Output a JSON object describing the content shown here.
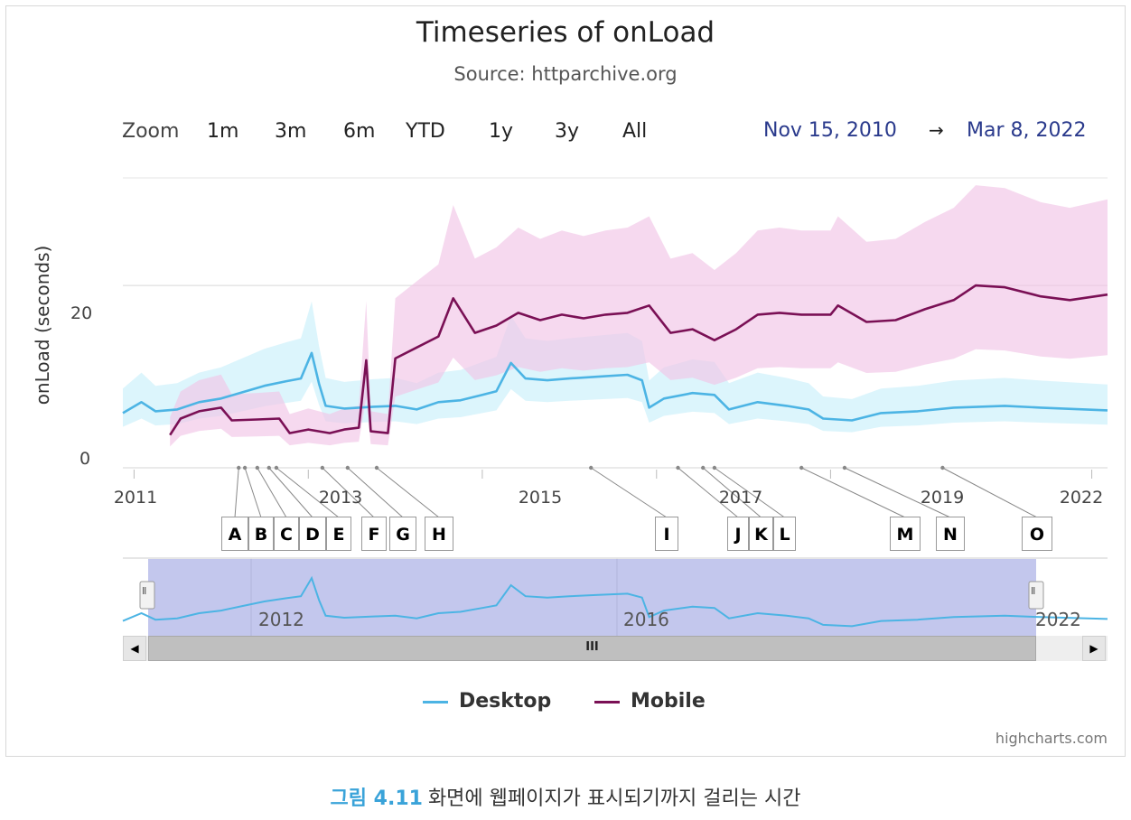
{
  "chart_data": {
    "type": "line",
    "title": "Timeseries of onLoad",
    "subtitle": "Source: httparchive.org",
    "ylabel": "onLoad (seconds)",
    "ylim": [
      0,
      32
    ],
    "y_ticks": [
      "0",
      "20"
    ],
    "x_ticks": [
      "2011",
      "2013",
      "2015",
      "2017",
      "2019",
      "2022"
    ],
    "x_range": [
      "2010-11-15",
      "2022-03-08"
    ],
    "grid": true,
    "legend_position": "bottom",
    "series": [
      {
        "name": "Desktop",
        "color": "#4cb4e4",
        "band_color": "#c9f0fb",
        "points": [
          [
            "2010-11-15",
            6.0
          ],
          [
            "2011-02-01",
            7.2
          ],
          [
            "2011-04-01",
            6.2
          ],
          [
            "2011-07-01",
            6.4
          ],
          [
            "2011-10-01",
            7.2
          ],
          [
            "2012-01-01",
            7.6
          ],
          [
            "2012-04-01",
            8.3
          ],
          [
            "2012-07-01",
            9.0
          ],
          [
            "2012-10-01",
            9.5
          ],
          [
            "2012-12-01",
            9.8
          ],
          [
            "2013-01-15",
            12.6
          ],
          [
            "2013-02-15",
            9.2
          ],
          [
            "2013-03-15",
            6.8
          ],
          [
            "2013-06-01",
            6.5
          ],
          [
            "2013-10-01",
            6.7
          ],
          [
            "2014-01-01",
            6.8
          ],
          [
            "2014-04-01",
            6.4
          ],
          [
            "2014-07-01",
            7.2
          ],
          [
            "2014-10-01",
            7.4
          ],
          [
            "2015-01-01",
            8.0
          ],
          [
            "2015-03-01",
            8.4
          ],
          [
            "2015-05-01",
            11.5
          ],
          [
            "2015-07-01",
            9.8
          ],
          [
            "2015-10-01",
            9.6
          ],
          [
            "2016-01-01",
            9.8
          ],
          [
            "2016-05-01",
            10.0
          ],
          [
            "2016-09-01",
            10.2
          ],
          [
            "2016-11-01",
            9.6
          ],
          [
            "2016-12-01",
            6.6
          ],
          [
            "2017-02-01",
            7.6
          ],
          [
            "2017-06-01",
            8.2
          ],
          [
            "2017-09-01",
            8.0
          ],
          [
            "2017-11-01",
            6.4
          ],
          [
            "2018-03-01",
            7.2
          ],
          [
            "2018-07-01",
            6.8
          ],
          [
            "2018-10-01",
            6.4
          ],
          [
            "2018-12-01",
            5.4
          ],
          [
            "2019-04-01",
            5.2
          ],
          [
            "2019-08-01",
            6.0
          ],
          [
            "2020-01-01",
            6.2
          ],
          [
            "2020-06-01",
            6.6
          ],
          [
            "2021-01-01",
            6.8
          ],
          [
            "2021-06-01",
            6.6
          ],
          [
            "2022-03-08",
            6.3
          ]
        ]
      },
      {
        "name": "Mobile",
        "color": "#7a1055",
        "band_color": "#f1c4e6",
        "points": [
          [
            "2011-06-01",
            3.6
          ],
          [
            "2011-07-15",
            5.4
          ],
          [
            "2011-10-01",
            6.2
          ],
          [
            "2012-01-01",
            6.6
          ],
          [
            "2012-02-15",
            5.2
          ],
          [
            "2012-06-01",
            5.3
          ],
          [
            "2012-09-01",
            5.4
          ],
          [
            "2012-10-15",
            3.8
          ],
          [
            "2013-01-01",
            4.2
          ],
          [
            "2013-04-01",
            3.8
          ],
          [
            "2013-06-01",
            4.2
          ],
          [
            "2013-08-01",
            4.4
          ],
          [
            "2013-09-01",
            11.8
          ],
          [
            "2013-09-20",
            4.0
          ],
          [
            "2013-12-01",
            3.8
          ],
          [
            "2014-01-01",
            12.0
          ],
          [
            "2014-04-01",
            13.2
          ],
          [
            "2014-07-01",
            14.4
          ],
          [
            "2014-09-01",
            18.6
          ],
          [
            "2014-12-01",
            14.8
          ],
          [
            "2015-03-01",
            15.6
          ],
          [
            "2015-06-01",
            17.0
          ],
          [
            "2015-09-01",
            16.2
          ],
          [
            "2015-12-01",
            16.8
          ],
          [
            "2016-03-01",
            16.4
          ],
          [
            "2016-06-01",
            16.8
          ],
          [
            "2016-09-01",
            17.0
          ],
          [
            "2016-12-01",
            17.8
          ],
          [
            "2017-03-01",
            14.8
          ],
          [
            "2017-06-01",
            15.2
          ],
          [
            "2017-09-01",
            14.0
          ],
          [
            "2017-12-01",
            15.2
          ],
          [
            "2018-03-01",
            16.8
          ],
          [
            "2018-06-01",
            17.0
          ],
          [
            "2018-09-01",
            16.8
          ],
          [
            "2019-01-01",
            16.8
          ],
          [
            "2019-02-01",
            17.8
          ],
          [
            "2019-06-01",
            16.0
          ],
          [
            "2019-10-01",
            16.2
          ],
          [
            "2020-02-01",
            17.4
          ],
          [
            "2020-06-01",
            18.4
          ],
          [
            "2020-09-01",
            20.0
          ],
          [
            "2021-01-01",
            19.8
          ],
          [
            "2021-06-01",
            18.8
          ],
          [
            "2021-10-01",
            18.4
          ],
          [
            "2022-03-08",
            19.0
          ]
        ]
      }
    ],
    "flags": [
      {
        "label": "A",
        "date": "2012-03-15"
      },
      {
        "label": "B",
        "date": "2012-04-10"
      },
      {
        "label": "C",
        "date": "2012-06-01"
      },
      {
        "label": "D",
        "date": "2012-07-20"
      },
      {
        "label": "E",
        "date": "2012-08-20"
      },
      {
        "label": "F",
        "date": "2013-03-01"
      },
      {
        "label": "G",
        "date": "2013-06-15"
      },
      {
        "label": "H",
        "date": "2013-10-15"
      },
      {
        "label": "I",
        "date": "2016-04-01"
      },
      {
        "label": "J",
        "date": "2017-04-01"
      },
      {
        "label": "K",
        "date": "2017-07-15"
      },
      {
        "label": "L",
        "date": "2017-09-01"
      },
      {
        "label": "M",
        "date": "2018-09-01"
      },
      {
        "label": "N",
        "date": "2019-03-01"
      },
      {
        "label": "O",
        "date": "2020-04-15"
      }
    ]
  },
  "range_selector": {
    "zoom_label": "Zoom",
    "buttons": [
      "1m",
      "3m",
      "6m",
      "YTD",
      "1y",
      "3y",
      "All"
    ],
    "from": "Nov 15, 2010",
    "arrow": "→",
    "to": "Mar 8, 2022"
  },
  "navigator": {
    "year_labels": [
      "2012",
      "2016",
      "2022"
    ],
    "handle_glyph": "Ⅱ",
    "thumb_glyph": "III",
    "left_arrow": "◀",
    "right_arrow": "▶"
  },
  "credits": "highcharts.com",
  "caption": {
    "figure": "그림 4.11",
    "text": "화면에 웹페이지가 표시되기까지 걸리는 시간"
  }
}
